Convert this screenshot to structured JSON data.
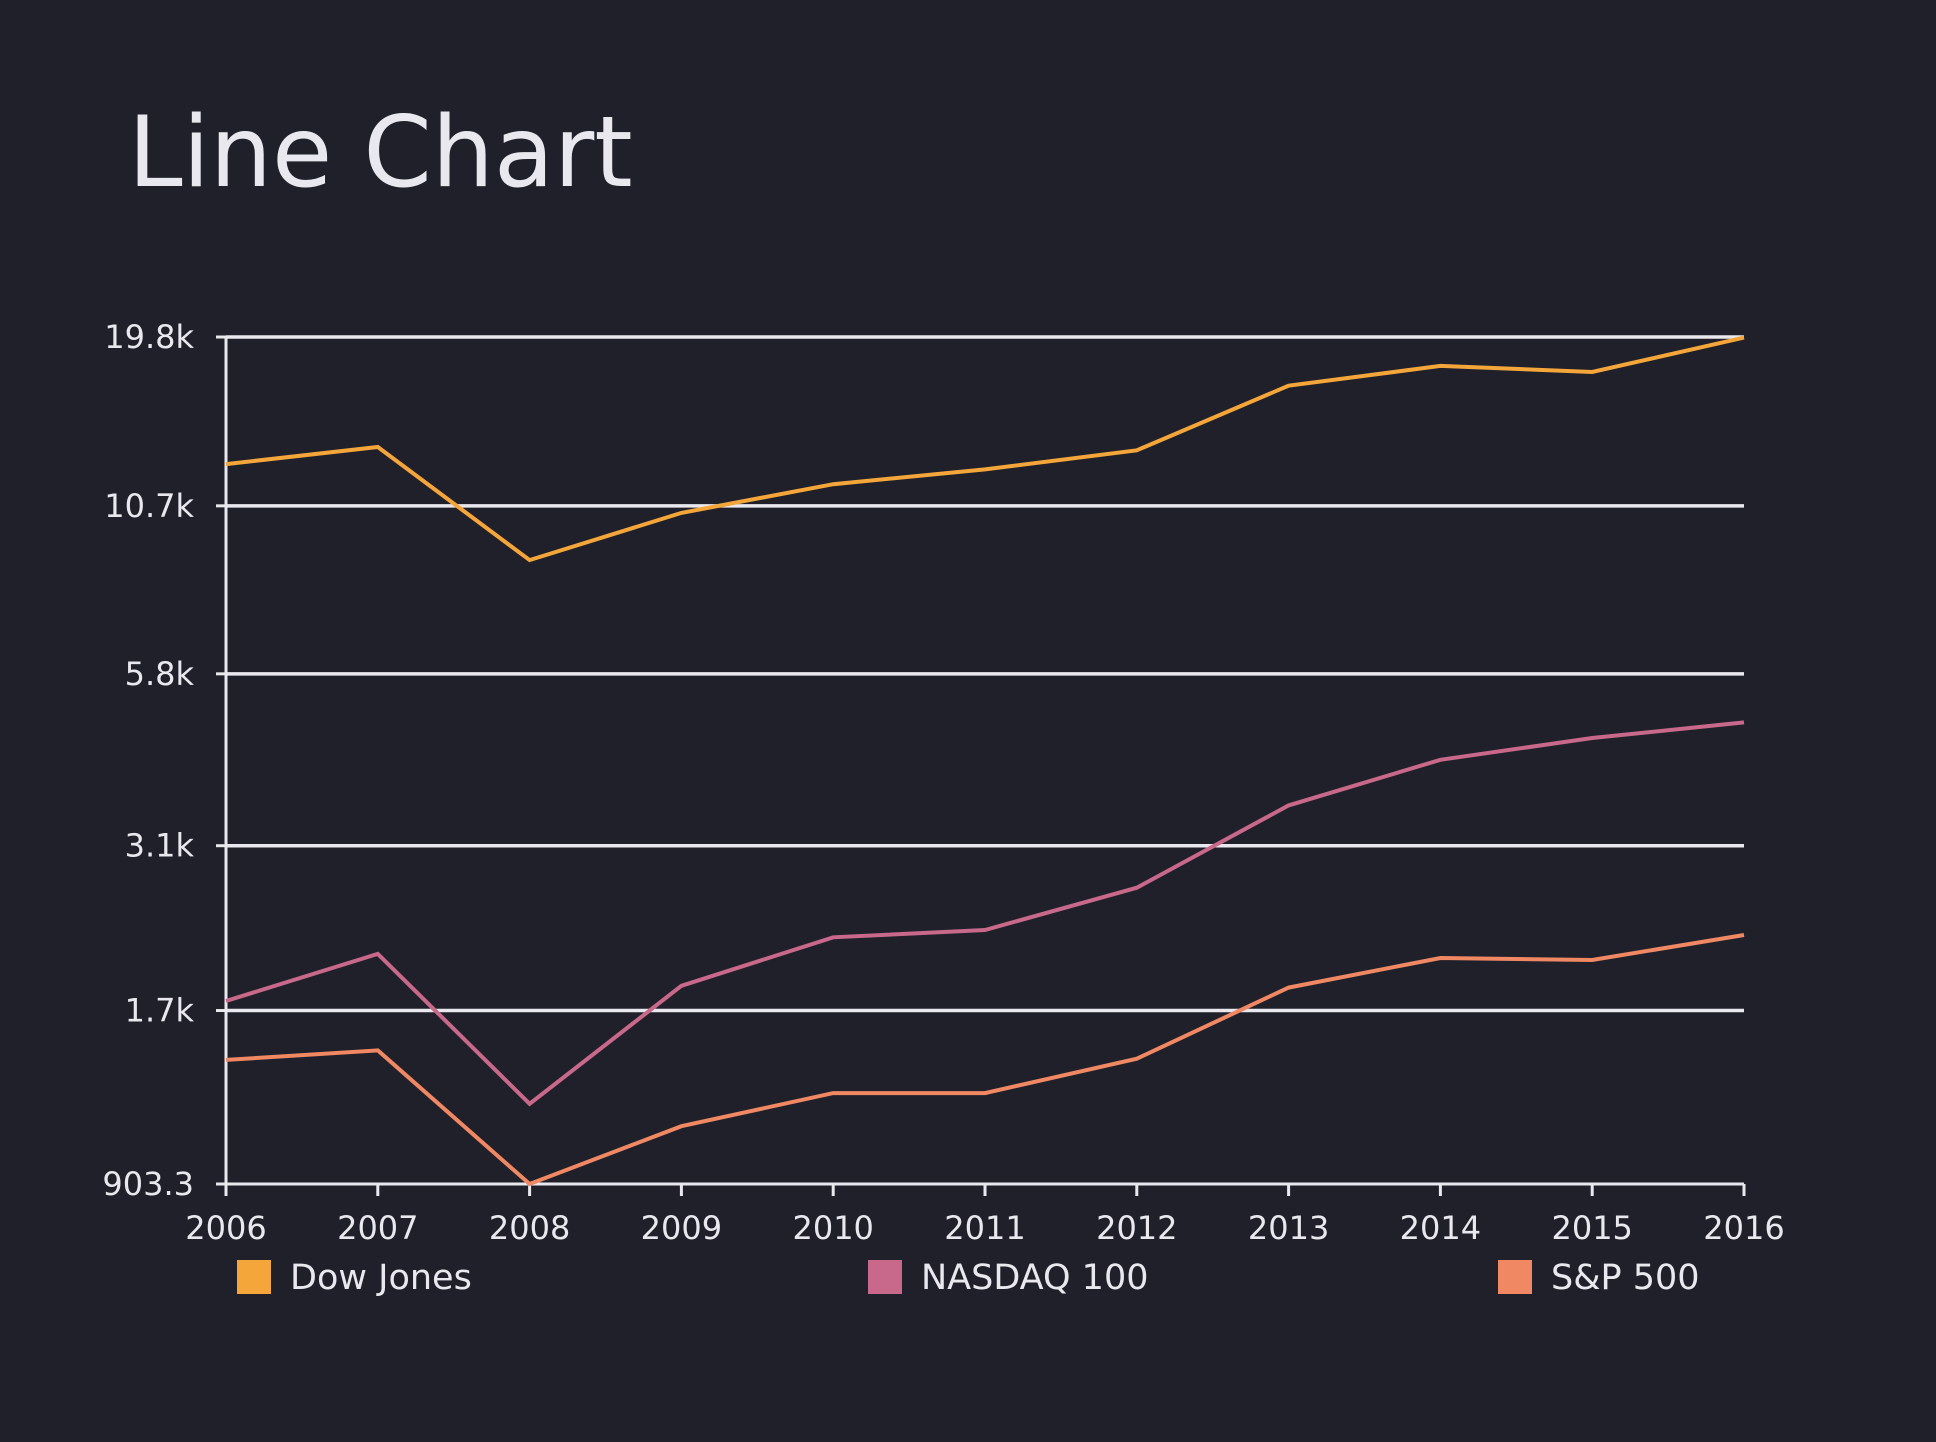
{
  "chart_data": {
    "type": "line",
    "title": "Line Chart",
    "xlabel": "",
    "ylabel": "",
    "x": [
      "2006",
      "2007",
      "2008",
      "2009",
      "2010",
      "2011",
      "2012",
      "2013",
      "2014",
      "2015",
      "2016"
    ],
    "y_scale": "log",
    "ylim": [
      903.3,
      19800
    ],
    "y_ticks": [
      903.3,
      1700,
      3100,
      5800,
      10700,
      19800
    ],
    "y_tick_labels": [
      "903.3",
      "1.7k",
      "3.1k",
      "5.8k",
      "10.7k",
      "19.8k"
    ],
    "grid": true,
    "legend_position": "bottom",
    "series": [
      {
        "name": "Dow Jones",
        "color": "#f4a63b",
        "values": [
          12460,
          13260,
          8780,
          10430,
          11580,
          12220,
          13100,
          16580,
          17820,
          17430,
          19760
        ]
      },
      {
        "name": "NASDAQ 100",
        "color": "#c8688a",
        "values": [
          1760,
          2090,
          1210,
          1860,
          2220,
          2280,
          2660,
          3590,
          4240,
          4590,
          4860
        ]
      },
      {
        "name": "S&P 500",
        "color": "#f08864",
        "values": [
          1420,
          1470,
          903.3,
          1115,
          1258,
          1258,
          1426,
          1848,
          2059,
          2044,
          2239
        ]
      }
    ]
  }
}
